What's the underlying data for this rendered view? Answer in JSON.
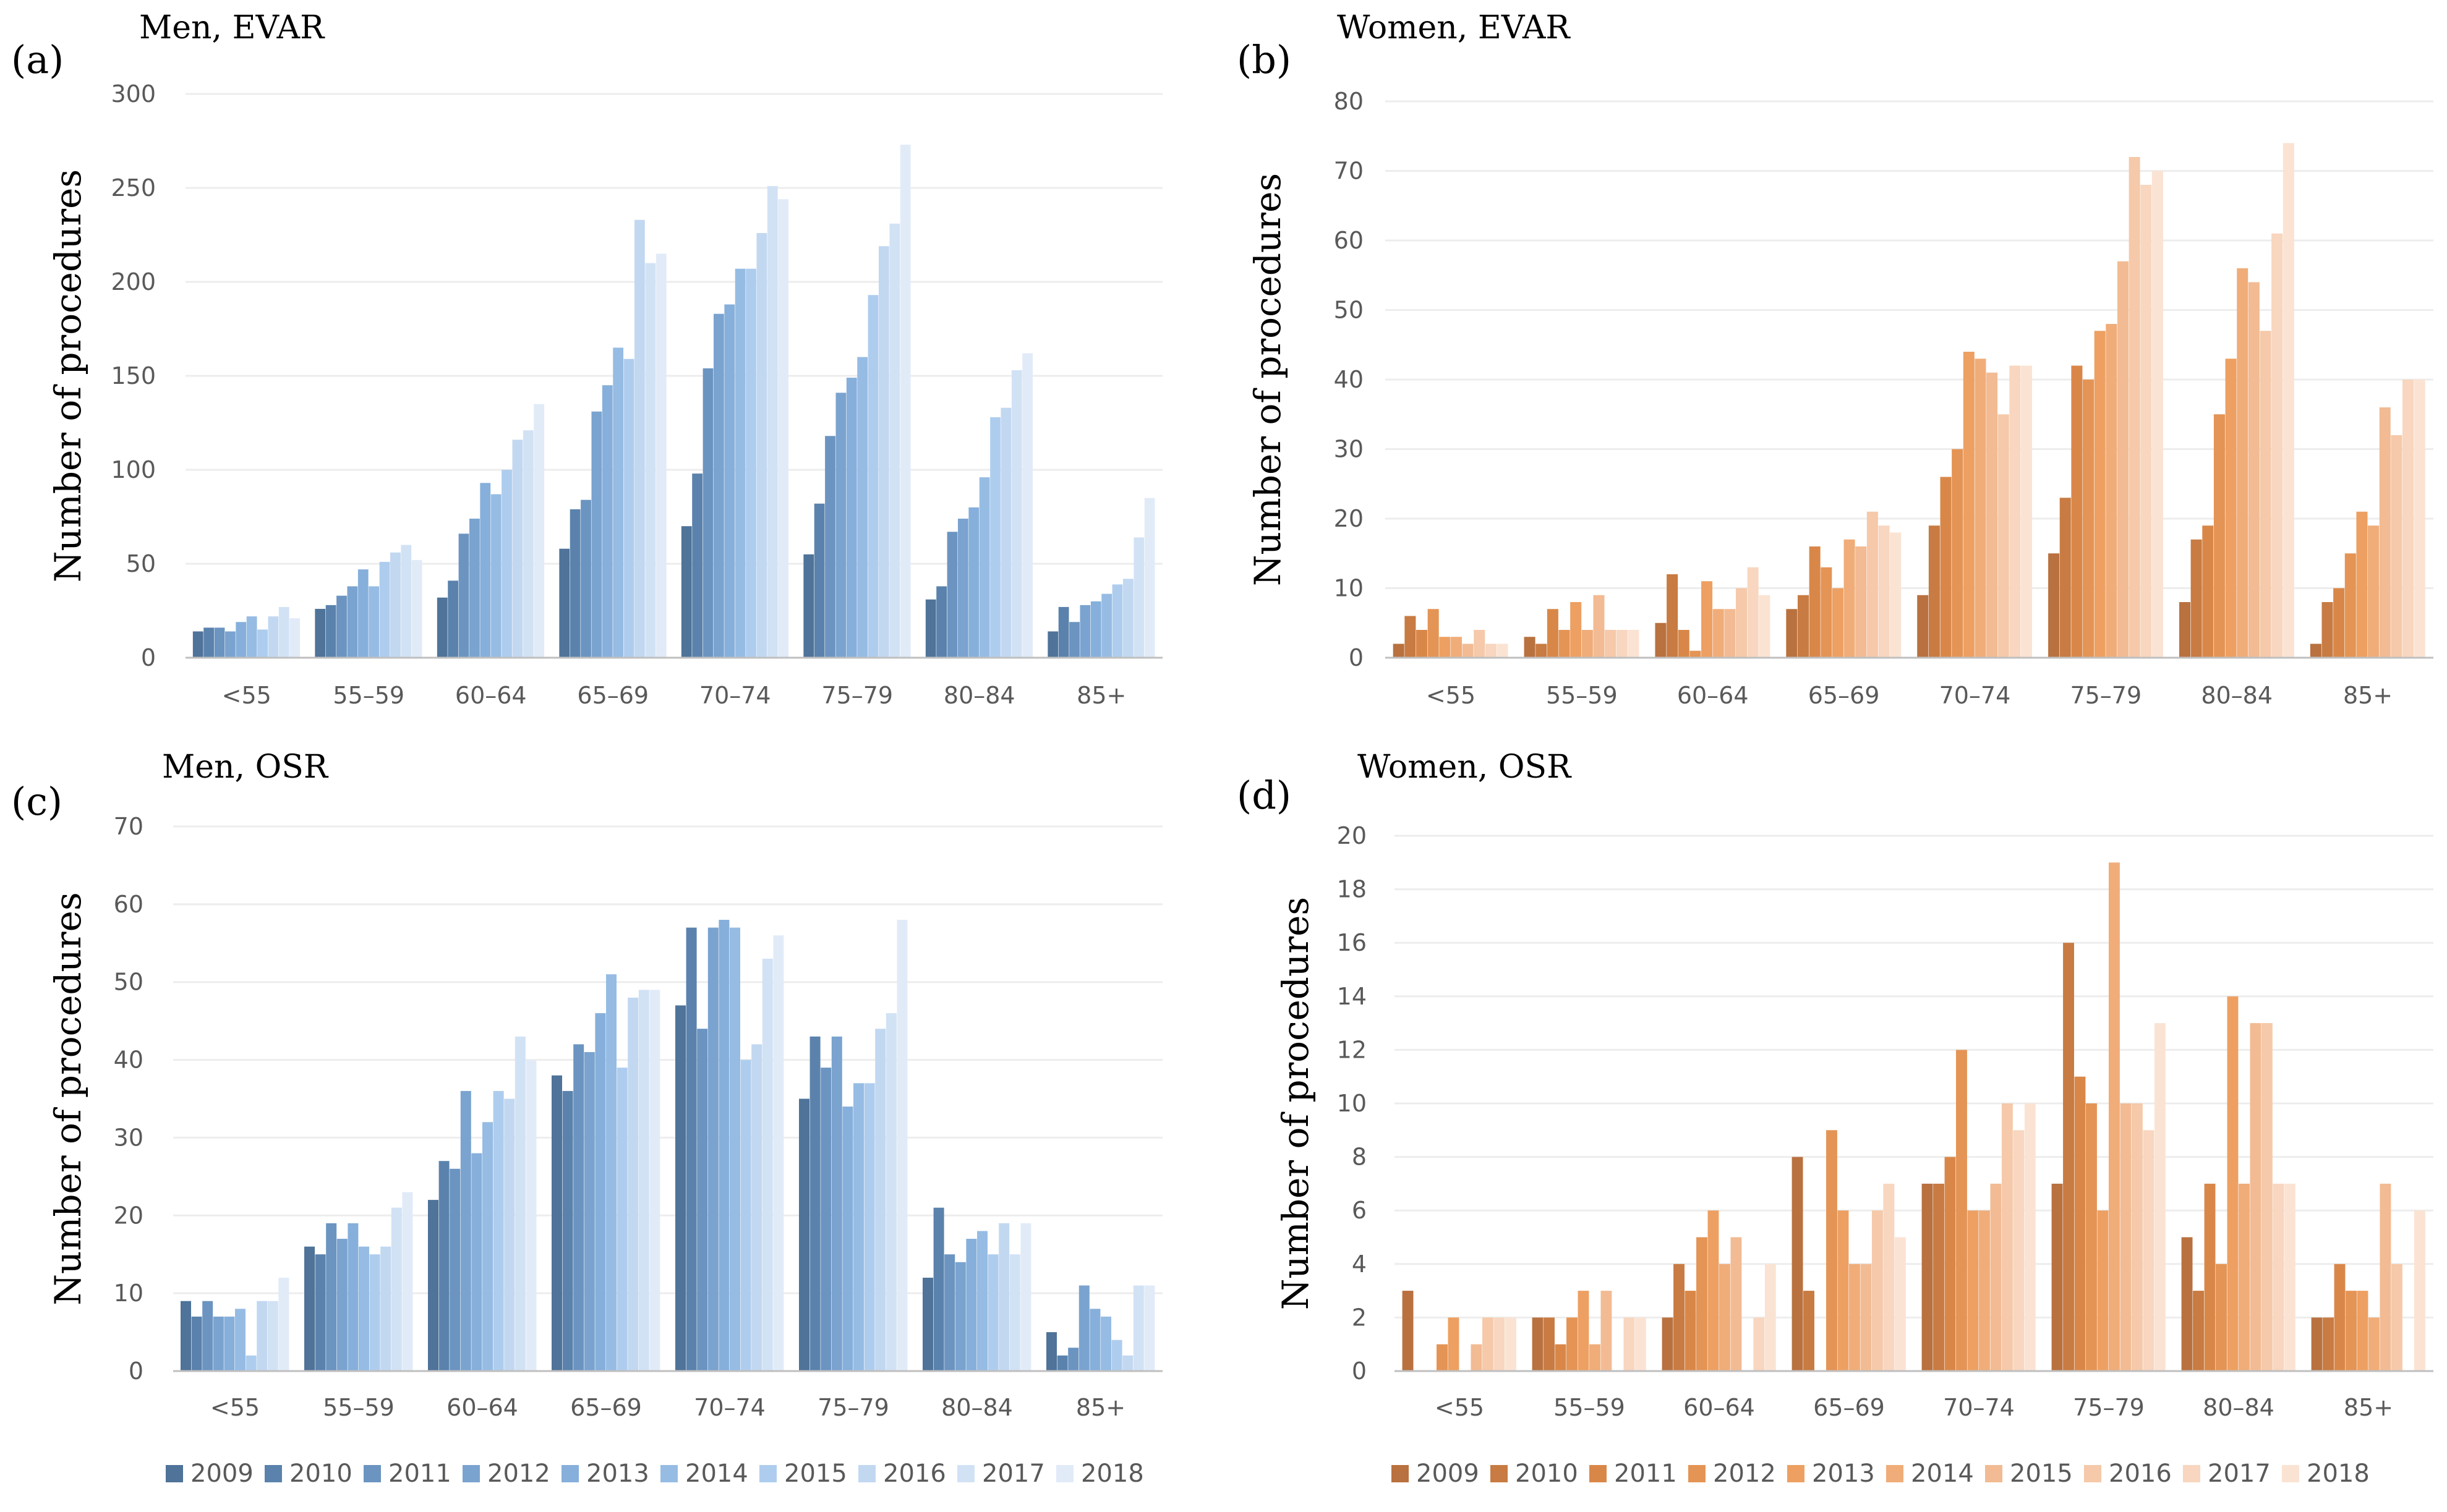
{
  "legend": {
    "years": [
      "2009",
      "2010",
      "2011",
      "2012",
      "2013",
      "2014",
      "2015",
      "2016",
      "2017",
      "2018"
    ],
    "blue_colors": [
      "#4f7399",
      "#5a82ac",
      "#6b94c1",
      "#7aa3cf",
      "#86afdb",
      "#96bce4",
      "#aecdee",
      "#c2d8f1",
      "#d2e2f5",
      "#e1ebf8"
    ],
    "orange_colors": [
      "#b9713f",
      "#c87b42",
      "#d98748",
      "#e49455",
      "#eda062",
      "#f0ad79",
      "#f2bb93",
      "#f5c9a9",
      "#f8d6bf",
      "#fbe3d3"
    ]
  },
  "chart_data": [
    {
      "id": "a",
      "panel_label": "(a)",
      "type": "bar",
      "title": "Men, EVAR",
      "ylabel": "Number of procedures",
      "xlabel": "",
      "ylim": [
        0,
        300
      ],
      "yticks": [
        0,
        50,
        100,
        150,
        200,
        250,
        300
      ],
      "grid": true,
      "palette": "blue",
      "categories": [
        "<55",
        "55–59",
        "60–64",
        "65–69",
        "70–74",
        "75–79",
        "80–84",
        "85+"
      ],
      "series": [
        {
          "name": "2009",
          "values": [
            14,
            26,
            32,
            58,
            70,
            55,
            31,
            14
          ]
        },
        {
          "name": "2010",
          "values": [
            16,
            28,
            41,
            79,
            98,
            82,
            38,
            27
          ]
        },
        {
          "name": "2011",
          "values": [
            16,
            33,
            66,
            84,
            154,
            118,
            67,
            19
          ]
        },
        {
          "name": "2012",
          "values": [
            14,
            38,
            74,
            131,
            183,
            141,
            74,
            28
          ]
        },
        {
          "name": "2013",
          "values": [
            19,
            47,
            93,
            145,
            188,
            149,
            80,
            30
          ]
        },
        {
          "name": "2014",
          "values": [
            22,
            38,
            87,
            165,
            207,
            160,
            96,
            34
          ]
        },
        {
          "name": "2015",
          "values": [
            15,
            51,
            100,
            159,
            207,
            193,
            128,
            39
          ]
        },
        {
          "name": "2016",
          "values": [
            22,
            56,
            116,
            233,
            226,
            219,
            133,
            42
          ]
        },
        {
          "name": "2017",
          "values": [
            27,
            60,
            121,
            210,
            251,
            231,
            153,
            64
          ]
        },
        {
          "name": "2018",
          "values": [
            21,
            52,
            135,
            215,
            244,
            273,
            162,
            85
          ]
        }
      ]
    },
    {
      "id": "b",
      "panel_label": "(b)",
      "type": "bar",
      "title": "Women, EVAR",
      "ylabel": "Number of procedures",
      "xlabel": "",
      "ylim": [
        0,
        80
      ],
      "yticks": [
        0,
        10,
        20,
        30,
        40,
        50,
        60,
        70,
        80
      ],
      "grid": true,
      "palette": "orange",
      "categories": [
        "<55",
        "55–59",
        "60–64",
        "65–69",
        "70–74",
        "75–79",
        "80–84",
        "85+"
      ],
      "series": [
        {
          "name": "2009",
          "values": [
            2,
            3,
            5,
            7,
            9,
            15,
            8,
            2
          ]
        },
        {
          "name": "2010",
          "values": [
            6,
            2,
            12,
            9,
            19,
            23,
            17,
            8
          ]
        },
        {
          "name": "2011",
          "values": [
            4,
            7,
            4,
            16,
            26,
            42,
            19,
            10
          ]
        },
        {
          "name": "2012",
          "values": [
            7,
            4,
            1,
            13,
            30,
            40,
            35,
            15
          ]
        },
        {
          "name": "2013",
          "values": [
            3,
            8,
            11,
            10,
            44,
            47,
            43,
            21
          ]
        },
        {
          "name": "2014",
          "values": [
            3,
            4,
            7,
            17,
            43,
            48,
            56,
            19
          ]
        },
        {
          "name": "2015",
          "values": [
            2,
            9,
            7,
            16,
            41,
            57,
            54,
            36
          ]
        },
        {
          "name": "2016",
          "values": [
            4,
            4,
            10,
            21,
            35,
            72,
            47,
            32
          ]
        },
        {
          "name": "2017",
          "values": [
            2,
            4,
            13,
            19,
            42,
            68,
            61,
            40
          ]
        },
        {
          "name": "2018",
          "values": [
            2,
            4,
            9,
            18,
            42,
            70,
            74,
            40
          ]
        }
      ]
    },
    {
      "id": "c",
      "panel_label": "(c)",
      "type": "bar",
      "title": "Men, OSR",
      "ylabel": "Number of procedures",
      "xlabel": "",
      "ylim": [
        0,
        70
      ],
      "yticks": [
        0,
        10,
        20,
        30,
        40,
        50,
        60,
        70
      ],
      "grid": true,
      "palette": "blue",
      "categories": [
        "<55",
        "55–59",
        "60–64",
        "65–69",
        "70–74",
        "75–79",
        "80–84",
        "85+"
      ],
      "series": [
        {
          "name": "2009",
          "values": [
            9,
            16,
            22,
            38,
            47,
            35,
            12,
            5
          ]
        },
        {
          "name": "2010",
          "values": [
            7,
            15,
            27,
            36,
            57,
            43,
            21,
            2
          ]
        },
        {
          "name": "2011",
          "values": [
            9,
            19,
            26,
            42,
            44,
            39,
            15,
            3
          ]
        },
        {
          "name": "2012",
          "values": [
            7,
            17,
            36,
            41,
            57,
            43,
            14,
            11
          ]
        },
        {
          "name": "2013",
          "values": [
            7,
            19,
            28,
            46,
            58,
            34,
            17,
            8
          ]
        },
        {
          "name": "2014",
          "values": [
            8,
            16,
            32,
            51,
            57,
            37,
            18,
            7
          ]
        },
        {
          "name": "2015",
          "values": [
            2,
            15,
            36,
            39,
            40,
            37,
            15,
            4
          ]
        },
        {
          "name": "2016",
          "values": [
            9,
            16,
            35,
            48,
            42,
            44,
            19,
            2
          ]
        },
        {
          "name": "2017",
          "values": [
            9,
            21,
            43,
            49,
            53,
            46,
            15,
            11
          ]
        },
        {
          "name": "2018",
          "values": [
            12,
            23,
            40,
            49,
            56,
            58,
            19,
            11
          ]
        }
      ]
    },
    {
      "id": "d",
      "panel_label": "(d)",
      "type": "bar",
      "title": "Women, OSR",
      "ylabel": "Number of procedures",
      "xlabel": "",
      "ylim": [
        0,
        20
      ],
      "yticks": [
        0,
        2,
        4,
        6,
        8,
        10,
        12,
        14,
        16,
        18,
        20
      ],
      "grid": true,
      "palette": "orange",
      "categories": [
        "<55",
        "55–59",
        "60–64",
        "65–69",
        "70–74",
        "75–79",
        "80–84",
        "85+"
      ],
      "series": [
        {
          "name": "2009",
          "values": [
            3,
            2,
            2,
            8,
            7,
            7,
            5,
            2
          ]
        },
        {
          "name": "2010",
          "values": [
            0,
            2,
            4,
            3,
            7,
            16,
            3,
            2
          ]
        },
        {
          "name": "2011",
          "values": [
            0,
            1,
            3,
            0,
            8,
            11,
            7,
            4
          ]
        },
        {
          "name": "2012",
          "values": [
            1,
            2,
            5,
            9,
            12,
            10,
            4,
            3
          ]
        },
        {
          "name": "2013",
          "values": [
            2,
            3,
            6,
            6,
            6,
            6,
            14,
            3
          ]
        },
        {
          "name": "2014",
          "values": [
            0,
            1,
            4,
            4,
            6,
            19,
            7,
            2
          ]
        },
        {
          "name": "2015",
          "values": [
            1,
            3,
            5,
            4,
            7,
            10,
            13,
            7
          ]
        },
        {
          "name": "2016",
          "values": [
            2,
            0,
            0,
            6,
            10,
            10,
            13,
            4
          ]
        },
        {
          "name": "2017",
          "values": [
            2,
            2,
            2,
            7,
            9,
            9,
            7,
            0
          ]
        },
        {
          "name": "2018",
          "values": [
            2,
            2,
            4,
            5,
            10,
            13,
            7,
            6
          ]
        }
      ]
    }
  ]
}
